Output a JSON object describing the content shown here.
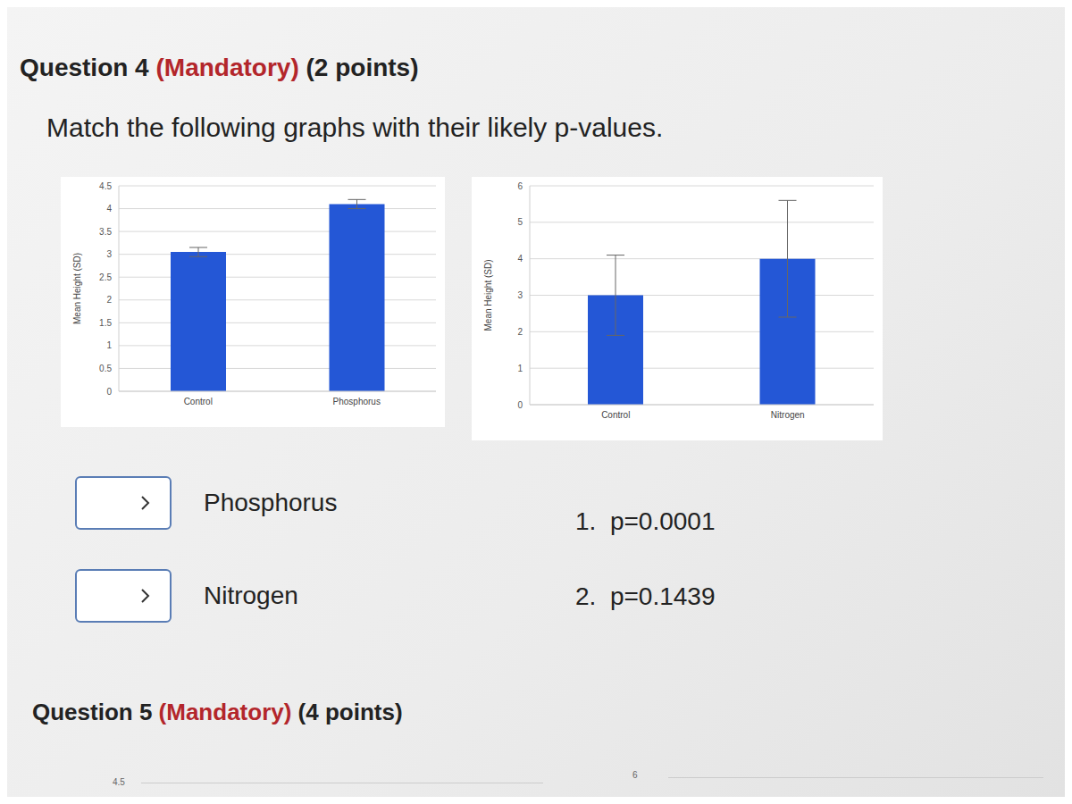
{
  "question4": {
    "title": "Question 4",
    "mandatory": "(Mandatory)",
    "points": "(2 points)",
    "prompt": "Match the following graphs with their likely p-values.",
    "items": [
      "Phosphorus",
      "Nitrogen"
    ],
    "options": [
      {
        "marker": "1.",
        "text": "p=0.0001"
      },
      {
        "marker": "2.",
        "text": "p=0.1439"
      }
    ]
  },
  "chart_data": [
    {
      "type": "bar",
      "y_label": "Mean Height (SD)",
      "categories": [
        "Control",
        "Phosphorus"
      ],
      "values": [
        3.05,
        4.1
      ],
      "errors": [
        0.1,
        0.1
      ],
      "color": "#2457d6",
      "ylim": [
        0,
        4.5
      ],
      "yticks": [
        0,
        0.5,
        1,
        1.5,
        2,
        2.5,
        3,
        3.5,
        4,
        4.5
      ],
      "grid": true
    },
    {
      "type": "bar",
      "y_label": "Mean Height (SD)",
      "categories": [
        "Control",
        "Nitrogen"
      ],
      "values": [
        3.0,
        4.0
      ],
      "errors": [
        1.1,
        1.6
      ],
      "color": "#2457d6",
      "ylim": [
        0,
        6
      ],
      "yticks": [
        0,
        1,
        2,
        3,
        4,
        5,
        6
      ],
      "grid": true
    }
  ],
  "question5": {
    "title": "Question 5",
    "mandatory": "(Mandatory)",
    "points": "(4 points)",
    "visible_ticks": [
      4.5,
      6
    ]
  }
}
